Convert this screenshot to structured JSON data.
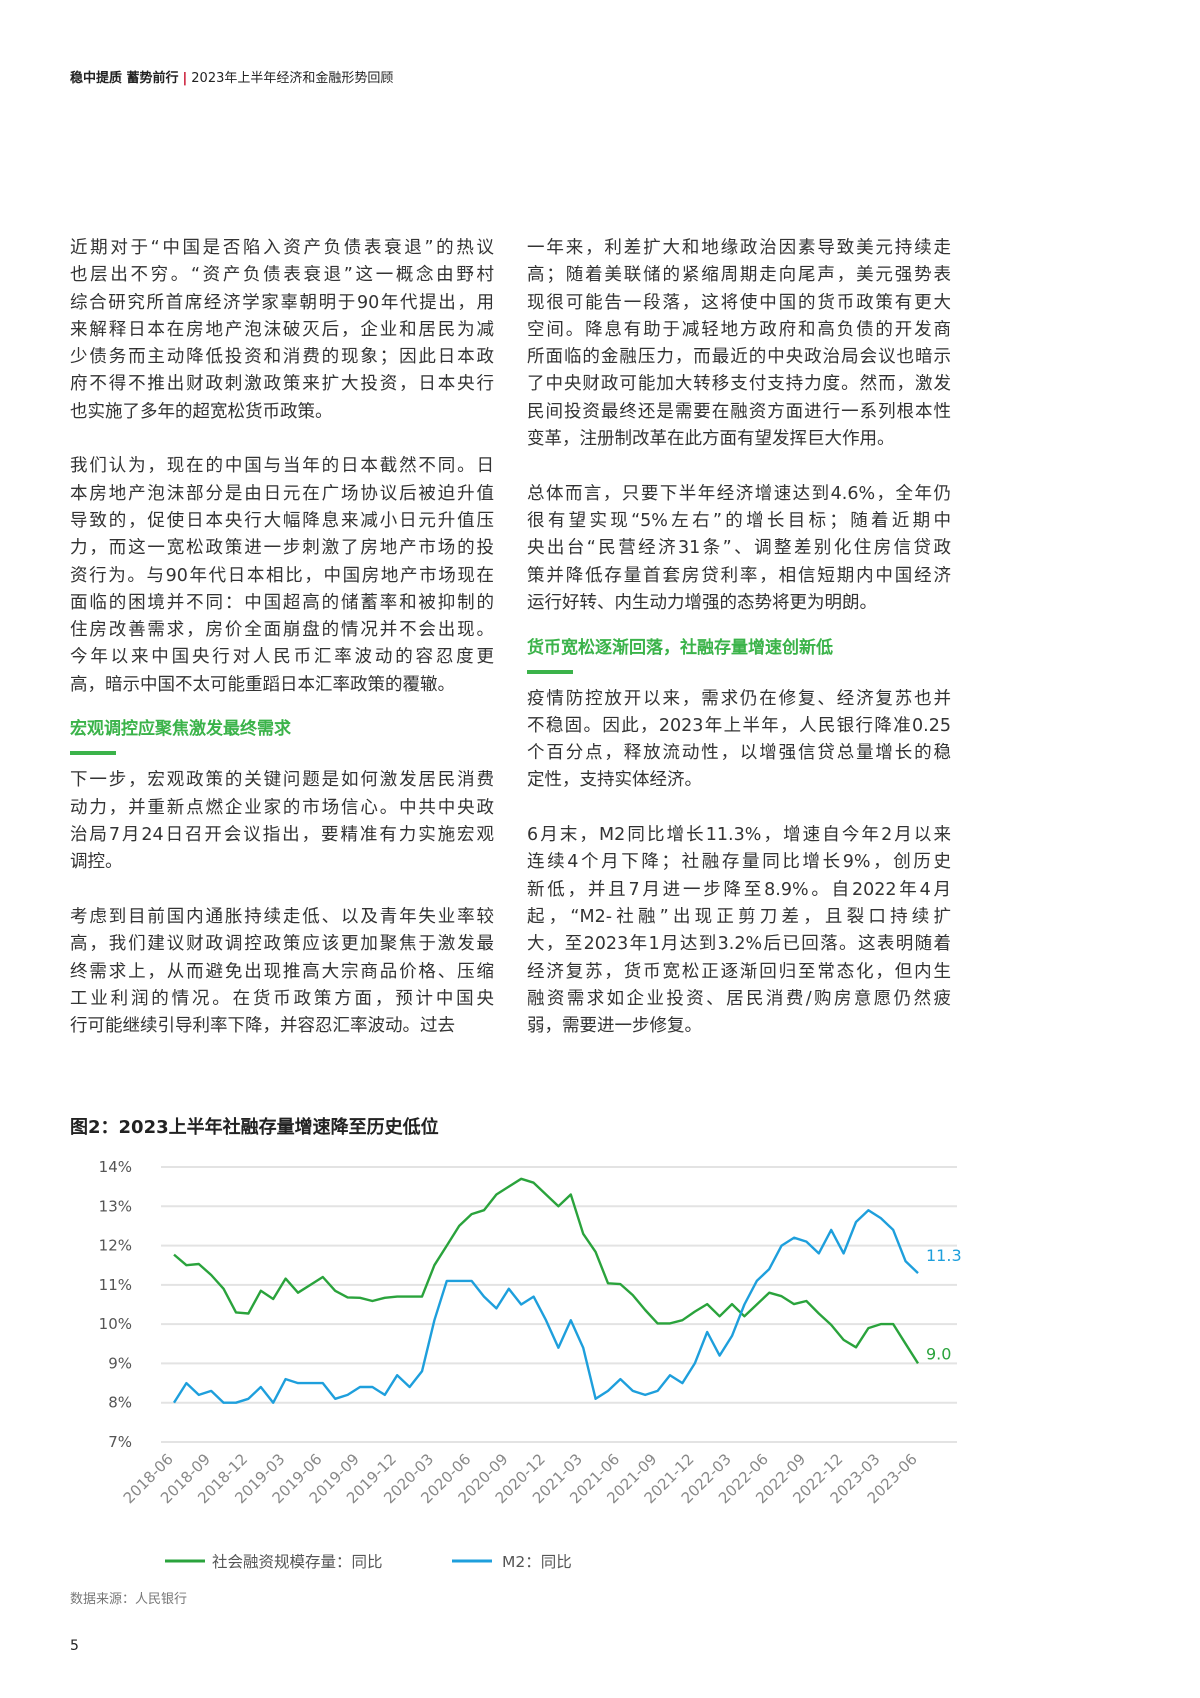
{
  "header": {
    "brand": "稳中提质 蓄势前行",
    "separator": "|",
    "subtitle": "2023年上半年经济和金融形势回顾"
  },
  "left_column": {
    "p1": [
      "近期对于“中国是否陷入资产负债表衰退”的热议",
      "也层出不穷。“资产负债表衰退”这一概念由野村",
      "综合研究所首席经济学家辜朝明于90年代提出，用",
      "来解释日本在房地产泡沫破灭后，企业和居民为减",
      "少债务而主动降低投资和消费的现象；因此日本政",
      "府不得不推出财政刺激政策来扩大投资，日本央行",
      "也实施了多年的超宽松货币政策。"
    ],
    "p2": [
      "我们认为，现在的中国与当年的日本截然不同。日",
      "本房地产泡沫部分是由日元在广场协议后被迫升值",
      "导致的，促使日本央行大幅降息来减小日元升值压",
      "力，而这一宽松政策进一步刺激了房地产市场的投",
      "资行为。与90年代日本相比，中国房地产市场现在",
      "面临的困境并不同：中国超高的储蓄率和被抑制的",
      "住房改善需求，房价全面崩盘的情况并不会出现。",
      "今年以来中国央行对人民币汇率波动的容忍度更",
      "高，暗示中国不太可能重蹈日本汇率政策的覆辙。"
    ],
    "heading": "宏观调控应聚焦激发最终需求",
    "p3": [
      "下一步，宏观政策的关键问题是如何激发居民消费",
      "动力，并重新点燃企业家的市场信心。中共中央政",
      "治局7月24日召开会议指出，要精准有力实施宏观",
      "调控。"
    ],
    "p4": [
      "考虑到目前国内通胀持续走低、以及青年失业率较",
      "高，我们建议财政调控政策应该更加聚焦于激发最",
      "终需求上，从而避免出现推高大宗商品价格、压缩",
      "工业利润的情况。在货币政策方面，预计中国央",
      "行可能继续引导利率下降，并容忍汇率波动。过去"
    ]
  },
  "right_column": {
    "p1": [
      "一年来，利差扩大和地缘政治因素导致美元持续走",
      "高；随着美联储的紧缩周期走向尾声，美元强势表",
      "现很可能告一段落，这将使中国的货币政策有更大",
      "空间。降息有助于减轻地方政府和高负债的开发商",
      "所面临的金融压力，而最近的中央政治局会议也暗示",
      "了中央财政可能加大转移支付支持力度。然而，激发",
      "民间投资最终还是需要在融资方面进行一系列根本性",
      "变革，注册制改革在此方面有望发挥巨大作用。"
    ],
    "p2": [
      "总体而言，只要下半年经济增速达到4.6%，全年仍",
      "很有望实现“5%左右”的增长目标；随着近期中",
      "央出台“民营经济31条”、调整差别化住房信贷政",
      "策并降低存量首套房贷利率，相信短期内中国经济",
      "运行好转、内生动力增强的态势将更为明朗。"
    ],
    "heading": "货币宽松逐渐回落，社融存量增速创新低",
    "p3": [
      "疫情防控放开以来，需求仍在修复、经济复苏也并",
      "不稳固。因此，2023年上半年，人民银行降准0.25",
      "个百分点，释放流动性，以增强信贷总量增长的稳",
      "定性，支持实体经济。"
    ],
    "p4": [
      "6月末，M2同比增长11.3%，增速自今年2月以来",
      "连续4个月下降；社融存量同比增长9%，创历史",
      "新低，并且7月进一步降至8.9%。自2022年4月",
      "起，“M2-社融”出现正剪刀差，且裂口持续扩",
      "大，至2023年1月达到3.2%后已回落。这表明随着",
      "经济复苏，货币宽松正逐渐回归至常态化，但内生",
      "融资需求如企业投资、居民消费/购房意愿仍然疲",
      "弱，需要进一步修复。"
    ]
  },
  "colors": {
    "accent_green": "#3bb34a",
    "tsf_line": "#2aa33c",
    "m2_line": "#1e9fdc",
    "grid": "#e3e3e3"
  },
  "chart_data": {
    "type": "line",
    "title": "图2：2023上半年社融存量增速降至历史低位",
    "ylim": [
      7,
      14
    ],
    "yticks": [
      "7%",
      "8%",
      "9%",
      "10%",
      "11%",
      "12%",
      "13%",
      "14%"
    ],
    "ytick_values": [
      7,
      8,
      9,
      10,
      11,
      12,
      13,
      14
    ],
    "x_start": "2018-06",
    "x_end": "2023-06",
    "x_frequency": "monthly",
    "xtick_labels": [
      "2018-06",
      "2018-09",
      "2018-12",
      "2019-03",
      "2019-06",
      "2019-09",
      "2019-12",
      "2020-03",
      "2020-06",
      "2020-09",
      "2020-12",
      "2021-03",
      "2021-06",
      "2021-09",
      "2021-12",
      "2022-03",
      "2022-06",
      "2022-09",
      "2022-12",
      "2023-03",
      "2023-06"
    ],
    "grid": "horizontal",
    "legend_position": "bottom",
    "series": [
      {
        "name": "社会融资规模存量：同比",
        "color": "#2aa33c",
        "end_label": "9.0",
        "values": [
          11.77,
          11.5,
          11.53,
          11.25,
          10.9,
          10.3,
          10.27,
          10.85,
          10.64,
          11.16,
          10.8,
          11.0,
          11.2,
          10.85,
          10.68,
          10.67,
          10.59,
          10.67,
          10.7,
          10.7,
          10.7,
          11.5,
          12.0,
          12.5,
          12.8,
          12.9,
          13.3,
          13.5,
          13.7,
          13.6,
          13.3,
          13.0,
          13.3,
          12.3,
          11.84,
          11.04,
          11.02,
          10.74,
          10.36,
          10.02,
          10.02,
          10.1,
          10.32,
          10.51,
          10.2,
          10.51,
          10.2,
          10.5,
          10.8,
          10.71,
          10.51,
          10.59,
          10.27,
          9.98,
          9.6,
          9.41,
          9.9,
          10.0,
          10.0,
          9.5,
          9.0
        ]
      },
      {
        "name": "M2：同比",
        "color": "#1e9fdc",
        "end_label": "11.3",
        "values": [
          8.0,
          8.5,
          8.2,
          8.3,
          8.0,
          8.0,
          8.1,
          8.4,
          8.0,
          8.6,
          8.5,
          8.5,
          8.5,
          8.1,
          8.2,
          8.4,
          8.4,
          8.2,
          8.7,
          8.4,
          8.8,
          10.1,
          11.1,
          11.1,
          11.1,
          10.7,
          10.4,
          10.9,
          10.5,
          10.7,
          10.1,
          9.4,
          10.1,
          9.4,
          8.1,
          8.3,
          8.6,
          8.3,
          8.2,
          8.3,
          8.7,
          8.5,
          9.0,
          9.8,
          9.2,
          9.7,
          10.5,
          11.1,
          11.4,
          12.0,
          12.2,
          12.1,
          11.8,
          12.4,
          11.8,
          12.6,
          12.9,
          12.7,
          12.4,
          11.6,
          11.3
        ]
      }
    ]
  },
  "source": "数据来源：人民银行",
  "page_number": "5"
}
